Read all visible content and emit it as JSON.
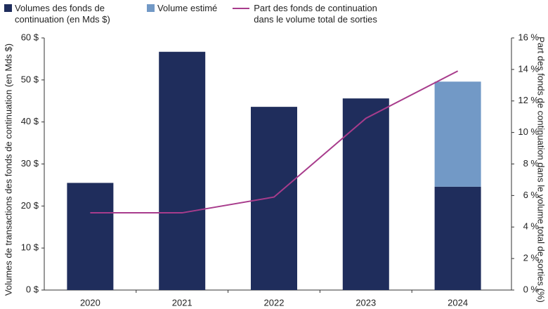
{
  "chart_data": {
    "type": "bar",
    "y_label": "Volumes de transactions des fonds de continuation (en Mds $)",
    "y2_label": "Part des fonds de continuation dans le volume total de sorties (%)",
    "categories": [
      "2020",
      "2021",
      "2022",
      "2023",
      "2024"
    ],
    "series": [
      {
        "name": "Volumes des fonds de continuation (en Mds $)",
        "type": "bar",
        "color": "#1f2d5c",
        "values": [
          25.5,
          56.7,
          43.6,
          45.6,
          24.6
        ]
      },
      {
        "name": "Volume estimé",
        "type": "bar",
        "color": "#7299c6",
        "values": [
          null,
          null,
          null,
          null,
          25
        ]
      },
      {
        "name": "Part des fonds de continuation dans le volume total de sorties",
        "type": "line",
        "axis": "y2",
        "color": "#a83c8c",
        "values": [
          4.9,
          4.9,
          5.9,
          10.9,
          13.9
        ]
      }
    ],
    "stacked": true,
    "ylim": [
      0,
      60
    ],
    "yticks": [
      {
        "value": 0,
        "label": "0 $"
      },
      {
        "value": 10,
        "label": "10 $"
      },
      {
        "value": 20,
        "label": "20 $"
      },
      {
        "value": 30,
        "label": "30 $"
      },
      {
        "value": 40,
        "label": "40 $"
      },
      {
        "value": 50,
        "label": "50 $"
      },
      {
        "value": 60,
        "label": "60 $"
      }
    ],
    "y2lim": [
      0,
      16
    ],
    "y2ticks": [
      {
        "value": 0,
        "label": "0 %"
      },
      {
        "value": 2,
        "label": "2 %"
      },
      {
        "value": 4,
        "label": "4 %"
      },
      {
        "value": 6,
        "label": "6 %"
      },
      {
        "value": 8,
        "label": "8 %"
      },
      {
        "value": 10,
        "label": "10 %"
      },
      {
        "value": 12,
        "label": "12 %"
      },
      {
        "value": 14,
        "label": "14 %"
      },
      {
        "value": 16,
        "label": "16 %"
      }
    ],
    "grid": false
  }
}
